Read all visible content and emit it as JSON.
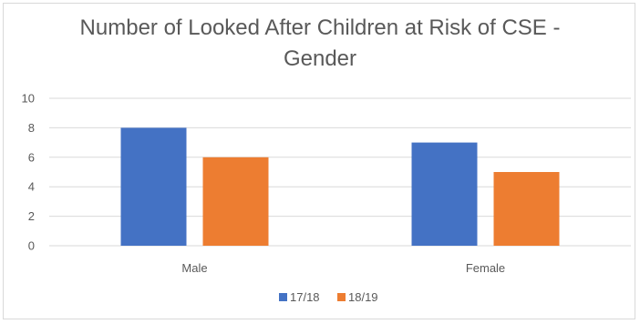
{
  "chart_data": {
    "type": "bar",
    "title_lines": [
      "Number of Looked After Children at Risk of CSE -",
      "Gender"
    ],
    "categories": [
      "Male",
      "Female"
    ],
    "series": [
      {
        "name": "17/18",
        "values": [
          8,
          7
        ],
        "color": "#4472c4"
      },
      {
        "name": "18/19",
        "values": [
          6,
          5
        ],
        "color": "#ed7d31"
      }
    ],
    "yticks": [
      0,
      2,
      4,
      6,
      8,
      10
    ],
    "ylim": [
      0,
      10
    ],
    "grid": true,
    "legend_position": "bottom",
    "gridline_color": "#d9d9d9",
    "text_color": "#595959"
  }
}
